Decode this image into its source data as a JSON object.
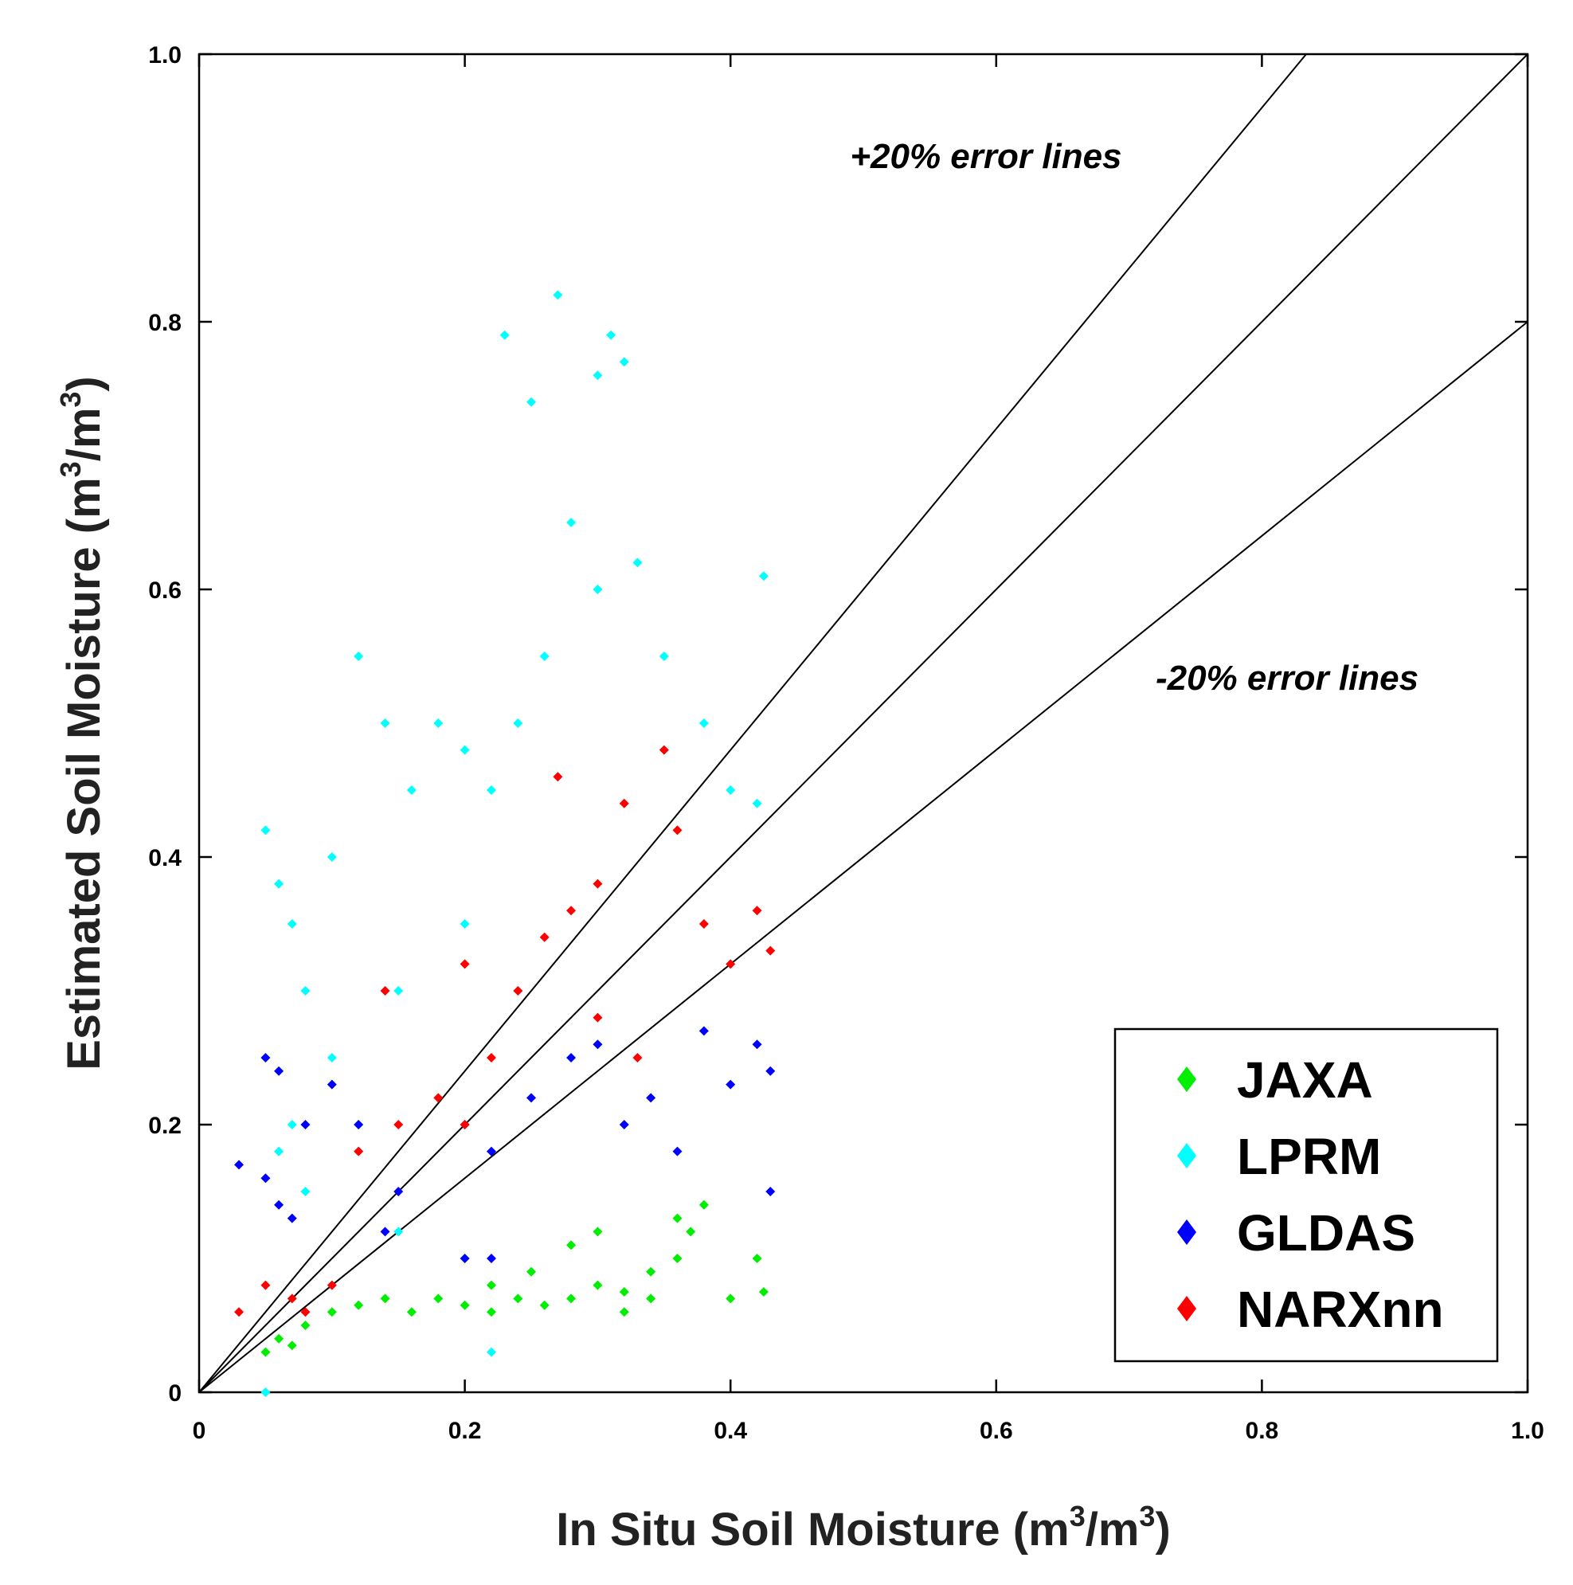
{
  "chart_data": {
    "type": "scatter",
    "title": "",
    "xlabel": "In Situ Soil Moisture (m",
    "xlabel_sup": "3",
    "xlabel_tail": "/m",
    "xlabel_sup2": "3",
    "xlabel_end": ")",
    "ylabel": "Estimated Soil Moisture (m",
    "ylabel_sup": "3",
    "ylabel_tail": "/m",
    "ylabel_sup2": "3",
    "ylabel_end": ")",
    "xlim": [
      0,
      1.0
    ],
    "ylim": [
      0,
      1.0
    ],
    "x_ticks": [
      {
        "value": 0,
        "label": "0"
      },
      {
        "value": 0.2,
        "label": "0.2"
      },
      {
        "value": 0.4,
        "label": "0.4"
      },
      {
        "value": 0.6,
        "label": "0.6"
      },
      {
        "value": 0.8,
        "label": "0.8"
      },
      {
        "value": 1.0,
        "label": "1.0"
      }
    ],
    "y_ticks": [
      {
        "value": 0,
        "label": "0"
      },
      {
        "value": 0.2,
        "label": "0.2"
      },
      {
        "value": 0.4,
        "label": "0.4"
      },
      {
        "value": 0.6,
        "label": "0.6"
      },
      {
        "value": 0.8,
        "label": "0.8"
      },
      {
        "value": 1.0,
        "label": "1.0"
      }
    ],
    "grid": false,
    "legend_position": "bottom-right",
    "reference_lines": [
      {
        "name": "upper-error-line",
        "slope": 1.2
      },
      {
        "name": "one-to-one-line",
        "slope": 1.0
      },
      {
        "name": "lower-error-line",
        "slope": 0.8
      }
    ],
    "annotations": [
      {
        "name": "upper-error-annotation",
        "text": "+20% error lines",
        "x": 0.49,
        "y": 0.915
      },
      {
        "name": "lower-error-annotation",
        "text": "-20% error lines",
        "x": 0.72,
        "y": 0.525
      }
    ],
    "series": [
      {
        "name": "JAXA",
        "color": "#00ee00",
        "points": [
          [
            0.05,
            0.03
          ],
          [
            0.06,
            0.04
          ],
          [
            0.07,
            0.035
          ],
          [
            0.08,
            0.05
          ],
          [
            0.1,
            0.06
          ],
          [
            0.12,
            0.065
          ],
          [
            0.14,
            0.07
          ],
          [
            0.16,
            0.06
          ],
          [
            0.18,
            0.07
          ],
          [
            0.2,
            0.065
          ],
          [
            0.22,
            0.06
          ],
          [
            0.24,
            0.07
          ],
          [
            0.26,
            0.065
          ],
          [
            0.28,
            0.07
          ],
          [
            0.3,
            0.08
          ],
          [
            0.32,
            0.075
          ],
          [
            0.34,
            0.09
          ],
          [
            0.36,
            0.1
          ],
          [
            0.37,
            0.12
          ],
          [
            0.38,
            0.14
          ],
          [
            0.4,
            0.07
          ],
          [
            0.42,
            0.1
          ],
          [
            0.425,
            0.075
          ],
          [
            0.36,
            0.13
          ],
          [
            0.3,
            0.12
          ],
          [
            0.28,
            0.11
          ],
          [
            0.25,
            0.09
          ],
          [
            0.22,
            0.08
          ],
          [
            0.34,
            0.07
          ],
          [
            0.32,
            0.06
          ]
        ]
      },
      {
        "name": "LPRM",
        "color": "#00ffff",
        "points": [
          [
            0.05,
            0.42
          ],
          [
            0.06,
            0.38
          ],
          [
            0.07,
            0.35
          ],
          [
            0.08,
            0.3
          ],
          [
            0.1,
            0.25
          ],
          [
            0.12,
            0.55
          ],
          [
            0.14,
            0.5
          ],
          [
            0.16,
            0.45
          ],
          [
            0.18,
            0.5
          ],
          [
            0.2,
            0.48
          ],
          [
            0.22,
            0.45
          ],
          [
            0.24,
            0.5
          ],
          [
            0.26,
            0.55
          ],
          [
            0.27,
            0.82
          ],
          [
            0.23,
            0.79
          ],
          [
            0.31,
            0.79
          ],
          [
            0.32,
            0.77
          ],
          [
            0.3,
            0.76
          ],
          [
            0.25,
            0.74
          ],
          [
            0.28,
            0.65
          ],
          [
            0.3,
            0.6
          ],
          [
            0.33,
            0.62
          ],
          [
            0.35,
            0.55
          ],
          [
            0.38,
            0.5
          ],
          [
            0.4,
            0.45
          ],
          [
            0.42,
            0.44
          ],
          [
            0.425,
            0.61
          ],
          [
            0.07,
            0.2
          ],
          [
            0.06,
            0.18
          ],
          [
            0.08,
            0.15
          ],
          [
            0.12,
            0.2
          ],
          [
            0.15,
            0.3
          ],
          [
            0.2,
            0.35
          ],
          [
            0.1,
            0.4
          ],
          [
            0.05,
            0.0
          ],
          [
            0.22,
            0.03
          ],
          [
            0.2,
            0.1
          ],
          [
            0.15,
            0.12
          ]
        ]
      },
      {
        "name": "GLDAS",
        "color": "#0000ff",
        "points": [
          [
            0.03,
            0.17
          ],
          [
            0.05,
            0.16
          ],
          [
            0.06,
            0.14
          ],
          [
            0.07,
            0.13
          ],
          [
            0.08,
            0.2
          ],
          [
            0.06,
            0.24
          ],
          [
            0.05,
            0.25
          ],
          [
            0.1,
            0.23
          ],
          [
            0.12,
            0.2
          ],
          [
            0.15,
            0.15
          ],
          [
            0.2,
            0.2
          ],
          [
            0.22,
            0.18
          ],
          [
            0.25,
            0.22
          ],
          [
            0.28,
            0.25
          ],
          [
            0.3,
            0.26
          ],
          [
            0.32,
            0.2
          ],
          [
            0.34,
            0.22
          ],
          [
            0.36,
            0.18
          ],
          [
            0.38,
            0.27
          ],
          [
            0.4,
            0.23
          ],
          [
            0.42,
            0.26
          ],
          [
            0.43,
            0.24
          ],
          [
            0.43,
            0.15
          ],
          [
            0.2,
            0.1
          ],
          [
            0.14,
            0.12
          ],
          [
            0.22,
            0.1
          ]
        ]
      },
      {
        "name": "NARXnn",
        "color": "#ff0000",
        "points": [
          [
            0.03,
            0.06
          ],
          [
            0.05,
            0.08
          ],
          [
            0.07,
            0.07
          ],
          [
            0.08,
            0.06
          ],
          [
            0.1,
            0.08
          ],
          [
            0.12,
            0.18
          ],
          [
            0.15,
            0.2
          ],
          [
            0.18,
            0.22
          ],
          [
            0.2,
            0.2
          ],
          [
            0.22,
            0.25
          ],
          [
            0.24,
            0.3
          ],
          [
            0.26,
            0.34
          ],
          [
            0.28,
            0.36
          ],
          [
            0.3,
            0.38
          ],
          [
            0.32,
            0.44
          ],
          [
            0.35,
            0.48
          ],
          [
            0.36,
            0.42
          ],
          [
            0.38,
            0.35
          ],
          [
            0.4,
            0.32
          ],
          [
            0.42,
            0.36
          ],
          [
            0.43,
            0.33
          ],
          [
            0.27,
            0.46
          ],
          [
            0.14,
            0.3
          ],
          [
            0.2,
            0.32
          ],
          [
            0.3,
            0.28
          ],
          [
            0.33,
            0.25
          ]
        ]
      }
    ]
  }
}
